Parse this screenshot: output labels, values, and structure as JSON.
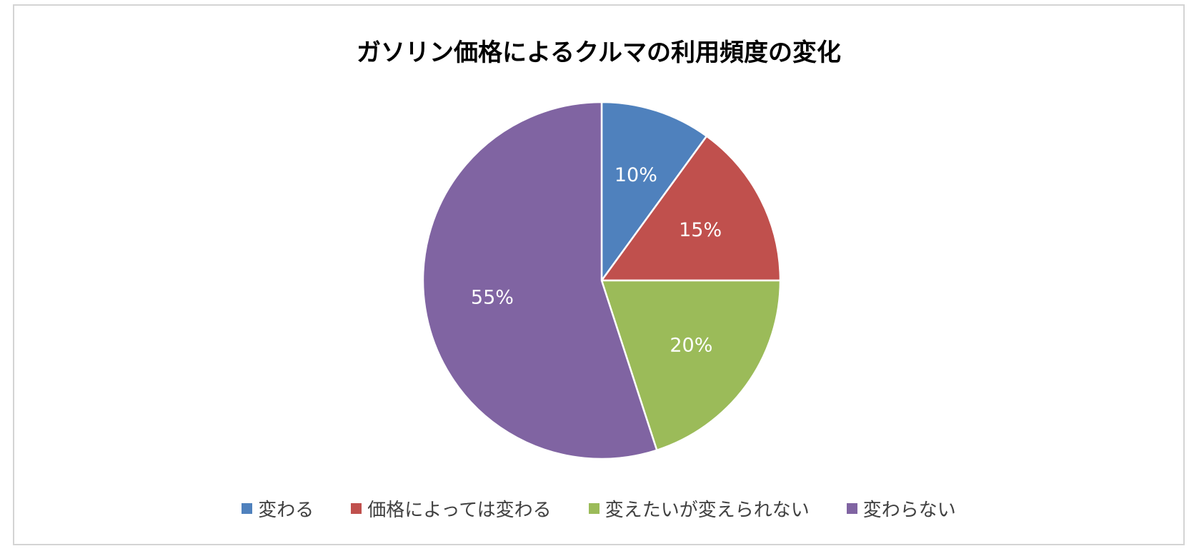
{
  "chart_data": {
    "type": "pie",
    "title": "ガソリン価格によるクルマの利用頻度の変化",
    "start_angle_deg": 0,
    "direction": "clockwise",
    "legend_position": "bottom",
    "slices": [
      {
        "label": "変わる",
        "value": 10,
        "display": "10%",
        "color": "#4F81BD"
      },
      {
        "label": "価格によっては変わる",
        "value": 15,
        "display": "15%",
        "color": "#C0504D"
      },
      {
        "label": "変えたいが変えられない",
        "value": 20,
        "display": "20%",
        "color": "#9BBB59"
      },
      {
        "label": "変わらない",
        "value": 55,
        "display": "55%",
        "color": "#8064A2"
      }
    ]
  }
}
